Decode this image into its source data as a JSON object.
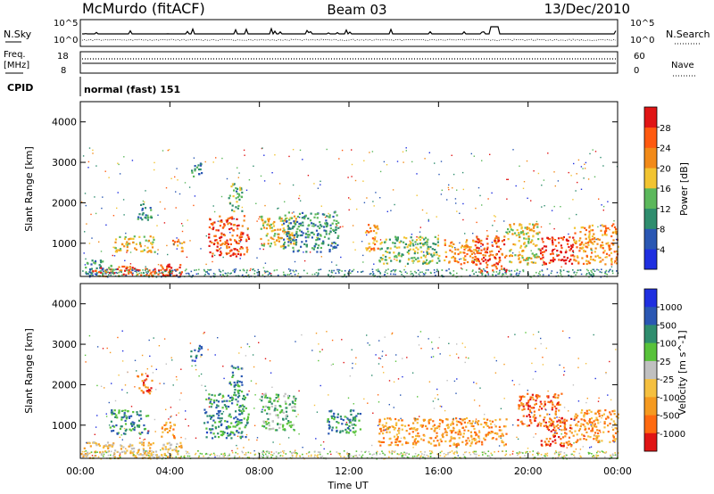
{
  "header": {
    "station": "McMurdo (fitACF)",
    "beam": "Beam 03",
    "date": "13/Dec/2010"
  },
  "noise_panel": {
    "left_label": "N.Sky",
    "right_label": "N.Search",
    "tick_top": "10^5",
    "tick_bottom": "10^0"
  },
  "freq_panel": {
    "left_label_line1": "Freq.",
    "left_label_line2": "[MHz]",
    "right_label": "Nave",
    "left_ticks": [
      "18",
      "8"
    ],
    "right_ticks": [
      "60",
      "0"
    ]
  },
  "cpid_panel": {
    "label": "CPID",
    "text": "normal (fast) 151"
  },
  "chart_data": [
    {
      "type": "heatmap",
      "parameter": "Power",
      "ylabel": "Slant Range [km]",
      "xlabel": "",
      "yticks": [
        1000,
        2000,
        3000,
        4000
      ],
      "ylim": [
        180,
        4500
      ],
      "xlim_hours": [
        0,
        24
      ],
      "colorbar_label": "Power [dB]",
      "colorbar_ticks": [
        "4",
        "8",
        "12",
        "16",
        "20",
        "24",
        "28"
      ],
      "colorbar_colors": [
        "#1f2fe0",
        "#2a57b3",
        "#2f8d6e",
        "#5cb85c",
        "#f2c431",
        "#f28a18",
        "#ff5a10",
        "#e01515"
      ],
      "echo_regions": [
        {
          "t": [
            0.2,
            1.5
          ],
          "r": [
            200,
            600
          ],
          "level": 2
        },
        {
          "t": [
            0.5,
            4.0
          ],
          "r": [
            200,
            450
          ],
          "level": 6
        },
        {
          "t": [
            1.5,
            3.3
          ],
          "r": [
            800,
            1200
          ],
          "level": 4
        },
        {
          "t": [
            2.5,
            3.2
          ],
          "r": [
            1600,
            2000
          ],
          "level": 2
        },
        {
          "t": [
            3.5,
            4.6
          ],
          "r": [
            200,
            500
          ],
          "level": 7
        },
        {
          "t": [
            4.1,
            4.6
          ],
          "r": [
            800,
            1100
          ],
          "level": 5
        },
        {
          "t": [
            4.9,
            5.4
          ],
          "r": [
            2600,
            3000
          ],
          "level": 2
        },
        {
          "t": [
            5.7,
            7.5
          ],
          "r": [
            700,
            1700
          ],
          "level": 6
        },
        {
          "t": [
            6.6,
            7.2
          ],
          "r": [
            1800,
            2500
          ],
          "level": 3
        },
        {
          "t": [
            8.0,
            9.6
          ],
          "r": [
            900,
            1700
          ],
          "level": 4
        },
        {
          "t": [
            9.0,
            11.5
          ],
          "r": [
            800,
            1800
          ],
          "level": 2
        },
        {
          "t": [
            12.7,
            13.3
          ],
          "r": [
            800,
            1500
          ],
          "level": 5
        },
        {
          "t": [
            13.3,
            16.0
          ],
          "r": [
            500,
            1200
          ],
          "level": 3
        },
        {
          "t": [
            16.2,
            17.8
          ],
          "r": [
            500,
            1100
          ],
          "level": 5
        },
        {
          "t": [
            17.5,
            19.0
          ],
          "r": [
            300,
            1200
          ],
          "level": 6
        },
        {
          "t": [
            19.0,
            20.5
          ],
          "r": [
            500,
            1500
          ],
          "level": 4
        },
        {
          "t": [
            20.5,
            22.0
          ],
          "r": [
            500,
            1200
          ],
          "level": 7
        },
        {
          "t": [
            22.0,
            24.0
          ],
          "r": [
            500,
            1500
          ],
          "level": 5
        }
      ]
    },
    {
      "type": "heatmap",
      "parameter": "Velocity",
      "ylabel": "Slant Range [km]",
      "xlabel": "Time UT",
      "xtick_labels": [
        "00:00",
        "04:00",
        "08:00",
        "12:00",
        "16:00",
        "20:00",
        "00:00"
      ],
      "xticks_hours": [
        0,
        4,
        8,
        12,
        16,
        20,
        24
      ],
      "yticks": [
        1000,
        2000,
        3000,
        4000
      ],
      "ylim": [
        180,
        4500
      ],
      "xlim_hours": [
        0,
        24
      ],
      "colorbar_label": "Velocity [m s^-1]",
      "colorbar_ticks": [
        "1000",
        "500",
        "100",
        "25",
        "-25",
        "-100",
        "-500",
        "-1000"
      ],
      "colorbar_colors": [
        "#1f2fe0",
        "#2a57b3",
        "#2f8d6e",
        "#58c23a",
        "#c0c0c0",
        "#f5c040",
        "#f59a20",
        "#ff6a10",
        "#e01515"
      ],
      "echo_regions": [
        {
          "t": [
            0.0,
            4.5
          ],
          "r": [
            200,
            600
          ],
          "level": 5
        },
        {
          "t": [
            1.3,
            3.0
          ],
          "r": [
            800,
            1400
          ],
          "level": 2
        },
        {
          "t": [
            2.5,
            3.2
          ],
          "r": [
            1800,
            2300
          ],
          "level": 7
        },
        {
          "t": [
            3.5,
            4.2
          ],
          "r": [
            700,
            1100
          ],
          "level": 6
        },
        {
          "t": [
            4.9,
            5.4
          ],
          "r": [
            2600,
            3000
          ],
          "level": 1
        },
        {
          "t": [
            5.5,
            7.5
          ],
          "r": [
            700,
            1800
          ],
          "level": 2
        },
        {
          "t": [
            6.6,
            7.2
          ],
          "r": [
            1800,
            2500
          ],
          "level": 2
        },
        {
          "t": [
            8.0,
            9.6
          ],
          "r": [
            900,
            1800
          ],
          "level": 3
        },
        {
          "t": [
            11.0,
            12.5
          ],
          "r": [
            800,
            1400
          ],
          "level": 2
        },
        {
          "t": [
            13.3,
            16.0
          ],
          "r": [
            500,
            1200
          ],
          "level": 6
        },
        {
          "t": [
            16.0,
            19.0
          ],
          "r": [
            500,
            1200
          ],
          "level": 6
        },
        {
          "t": [
            19.5,
            21.5
          ],
          "r": [
            1000,
            1800
          ],
          "level": 7
        },
        {
          "t": [
            20.5,
            22.0
          ],
          "r": [
            500,
            1200
          ],
          "level": 7
        },
        {
          "t": [
            22.0,
            24.0
          ],
          "r": [
            600,
            1400
          ],
          "level": 6
        }
      ]
    }
  ]
}
